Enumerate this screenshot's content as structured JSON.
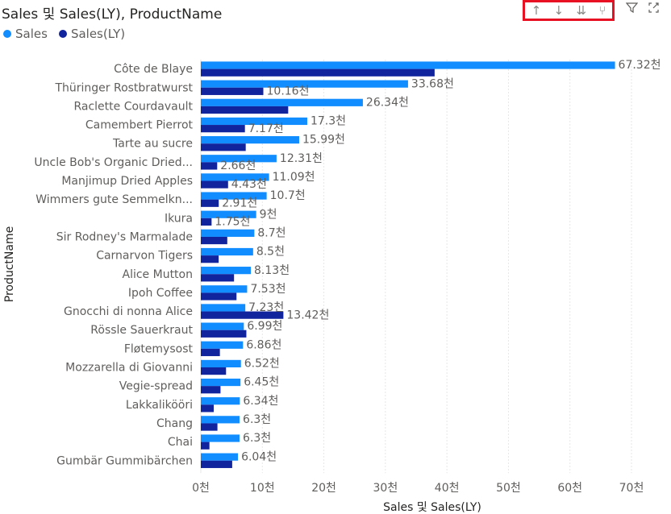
{
  "header": {
    "title": "Sales 및 Sales(LY), ProductName",
    "toolbar_icons": [
      "sort-ascending-icon",
      "sort-descending-icon",
      "expand-all-icon",
      "drill-down-icon"
    ],
    "side_icons": [
      "filter-icon",
      "focus-mode-icon"
    ]
  },
  "colors": {
    "sales": "#118dff",
    "sales_ly": "#12239e",
    "gridline": "#e6e6e6",
    "highlight": "#e81123"
  },
  "chart_data": {
    "type": "bar",
    "orientation": "horizontal",
    "ylabel": "ProductName",
    "xlabel": "Sales 및 Sales(LY)",
    "xlim": [
      0,
      70
    ],
    "xticks": [
      "0천",
      "10천",
      "20천",
      "30천",
      "40천",
      "50천",
      "60천",
      "70천"
    ],
    "legend_position": "top-left",
    "categories": [
      "Côte de Blaye",
      "Thüringer Rostbratwurst",
      "Raclette Courdavault",
      "Camembert Pierrot",
      "Tarte au sucre",
      "Uncle Bob's Organic Dried...",
      "Manjimup Dried Apples",
      "Wimmers gute Semmelkn...",
      "Ikura",
      "Sir Rodney's Marmalade",
      "Carnarvon Tigers",
      "Alice Mutton",
      "Ipoh Coffee",
      "Gnocchi di nonna Alice",
      "Rössle Sauerkraut",
      "Fløtemysost",
      "Mozzarella di Giovanni",
      "Vegie-spread",
      "Lakkalikööri",
      "Chang",
      "Chai",
      "Gumbär Gummibärchen"
    ],
    "series": [
      {
        "name": "Sales",
        "values": [
          67.32,
          33.68,
          26.34,
          17.3,
          15.99,
          12.31,
          11.09,
          10.7,
          9,
          8.7,
          8.5,
          8.13,
          7.53,
          7.23,
          6.99,
          6.86,
          6.52,
          6.45,
          6.34,
          6.3,
          6.3,
          6.04
        ],
        "labels": [
          "67.32천",
          "33.68천",
          "26.34천",
          "17.3천",
          "15.99천",
          "12.31천",
          "11.09천",
          "10.7천",
          "9천",
          "8.7천",
          "8.5천",
          "8.13천",
          "7.53천",
          "7.23천",
          "6.99천",
          "6.86천",
          "6.52천",
          "6.45천",
          "6.34천",
          "6.3천",
          "6.3천",
          "6.04천"
        ]
      },
      {
        "name": "Sales(LY)",
        "values": [
          38,
          10.16,
          14.2,
          7.17,
          7.3,
          2.66,
          4.43,
          2.91,
          1.75,
          4.3,
          2.9,
          5.4,
          5.8,
          13.42,
          7.4,
          3.1,
          4.1,
          3.2,
          2.1,
          2.7,
          1.4,
          5.1
        ],
        "labels": [
          "",
          "10.16천",
          "",
          "7.17천",
          "",
          "2.66천",
          "4.43천",
          "2.91천",
          "1.75천",
          "",
          "",
          "",
          "",
          "13.42천",
          "",
          "",
          "",
          "",
          "",
          "",
          "",
          ""
        ]
      }
    ]
  }
}
